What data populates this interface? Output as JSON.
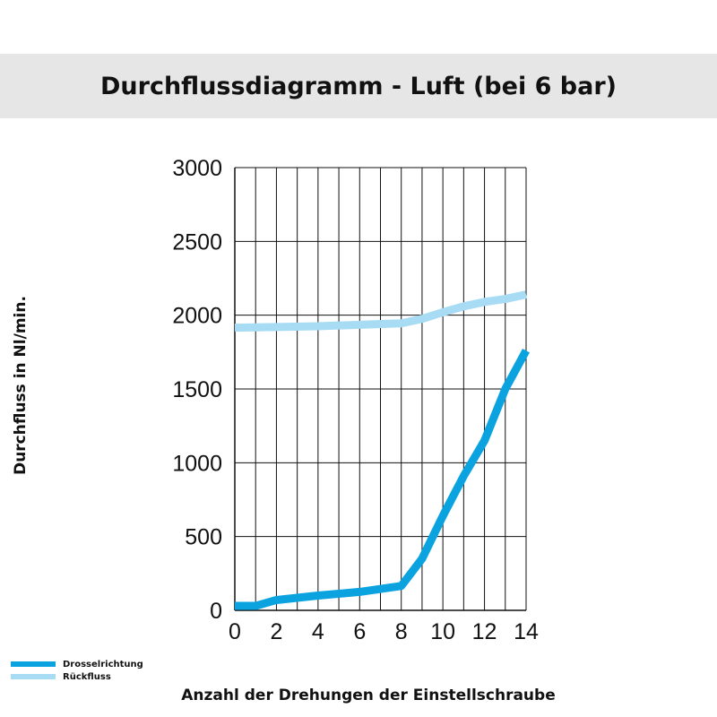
{
  "chart_data": {
    "type": "line",
    "title": "Durchflussdiagramm - Luft (bei 6 bar)",
    "xlabel": "Anzahl der Drehungen der Einstellschraube",
    "ylabel": "Durchfluss in Nl/min.",
    "xlim": [
      0,
      14
    ],
    "ylim": [
      0,
      3000
    ],
    "x_ticks": [
      0,
      2,
      4,
      6,
      8,
      10,
      12,
      14
    ],
    "y_ticks": [
      0,
      500,
      1000,
      1500,
      2000,
      2500,
      3000
    ],
    "x_grid_step": 1,
    "y_grid_step": 500,
    "grid": true,
    "legend_position": "bottom-left",
    "series": [
      {
        "name": "Drosselrichtung",
        "color": "#0aa3e0",
        "points": [
          [
            0,
            30
          ],
          [
            1,
            30
          ],
          [
            2,
            70
          ],
          [
            4,
            100
          ],
          [
            6,
            125
          ],
          [
            8,
            165
          ],
          [
            9,
            350
          ],
          [
            10,
            640
          ],
          [
            11,
            910
          ],
          [
            12,
            1150
          ],
          [
            13,
            1500
          ],
          [
            14,
            1760
          ]
        ]
      },
      {
        "name": "Rückfluss",
        "color": "#a8dcf5",
        "points": [
          [
            0,
            1915
          ],
          [
            2,
            1920
          ],
          [
            4,
            1925
          ],
          [
            6,
            1935
          ],
          [
            8,
            1945
          ],
          [
            9,
            1975
          ],
          [
            10,
            2020
          ],
          [
            11,
            2060
          ],
          [
            12,
            2090
          ],
          [
            13,
            2110
          ],
          [
            14,
            2140
          ]
        ]
      }
    ]
  }
}
